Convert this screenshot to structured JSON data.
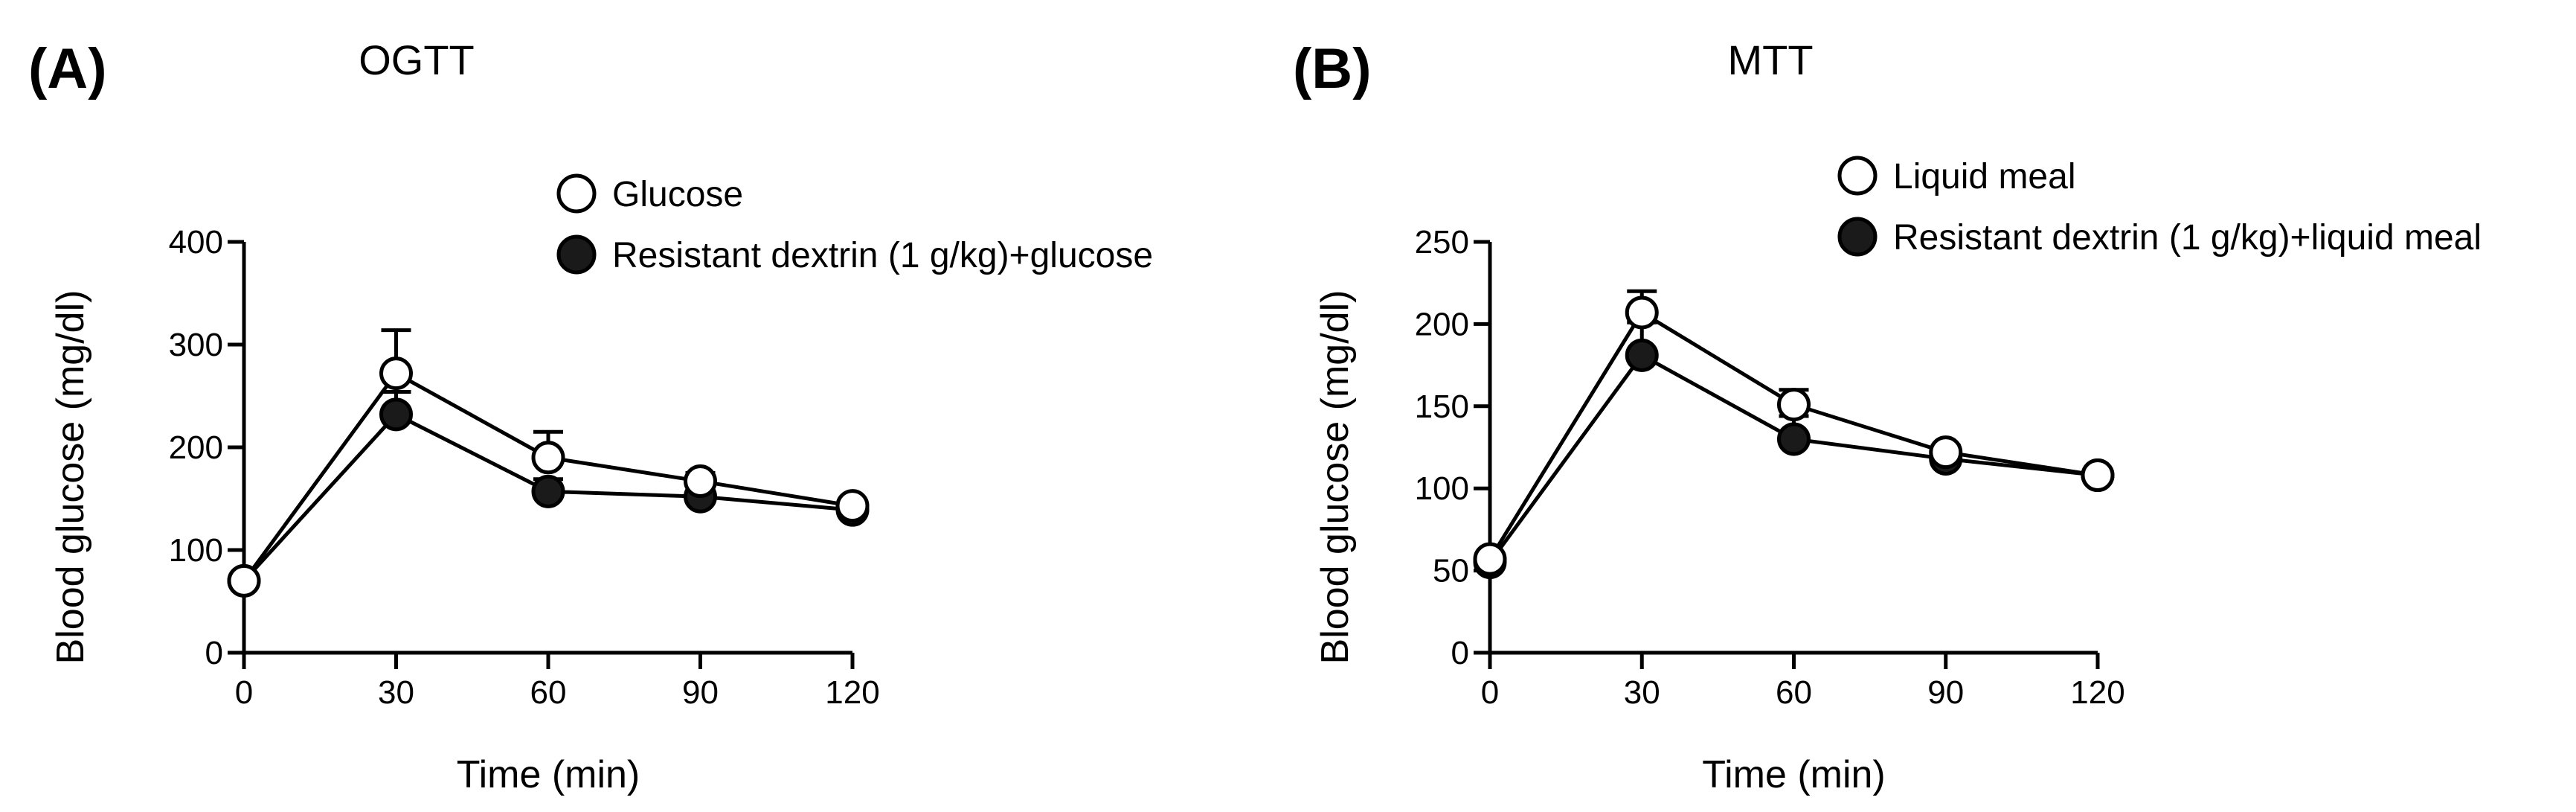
{
  "chart_data": [
    {
      "panel": "(A)",
      "title": "OGTT",
      "type": "line",
      "xlabel": "Time (min)",
      "ylabel": "Blood glucose (mg/dl)",
      "xlim": [
        0,
        120
      ],
      "ylim": [
        0,
        400
      ],
      "xticks": [
        0,
        30,
        60,
        90,
        120
      ],
      "yticks": [
        0,
        100,
        200,
        300,
        400
      ],
      "grid": false,
      "legend_position": "top-right",
      "series": [
        {
          "name": "Glucose",
          "marker": "open-circle",
          "color": "#ffffff",
          "x": [
            0,
            30,
            60,
            90,
            120
          ],
          "y": [
            70,
            272,
            190,
            167,
            143
          ],
          "err": [
            5,
            42,
            25,
            8,
            5
          ]
        },
        {
          "name": "Resistant dextrin (1 g/kg)+glucose",
          "marker": "filled-circle",
          "color": "#1a1a1a",
          "x": [
            0,
            30,
            60,
            90,
            120
          ],
          "y": [
            70,
            232,
            157,
            152,
            139
          ],
          "err": [
            5,
            22,
            12,
            6,
            5
          ]
        }
      ]
    },
    {
      "panel": "(B)",
      "title": "MTT",
      "type": "line",
      "xlabel": "Time (min)",
      "ylabel": "Blood glucose (mg/dl)",
      "xlim": [
        0,
        120
      ],
      "ylim": [
        0,
        250
      ],
      "xticks": [
        0,
        30,
        60,
        90,
        120
      ],
      "yticks": [
        0,
        50,
        100,
        150,
        200,
        250
      ],
      "grid": false,
      "legend_position": "top-right",
      "series": [
        {
          "name": "Liquid meal",
          "marker": "open-circle",
          "color": "#ffffff",
          "x": [
            0,
            30,
            60,
            90,
            120
          ],
          "y": [
            57,
            207,
            151,
            122,
            108
          ],
          "err": [
            3,
            13,
            9,
            4,
            3
          ]
        },
        {
          "name": "Resistant dextrin (1 g/kg)+liquid meal",
          "marker": "filled-circle",
          "color": "#1a1a1a",
          "x": [
            0,
            30,
            60,
            90,
            120
          ],
          "y": [
            55,
            181,
            130,
            118,
            108
          ],
          "err": [
            3,
            20,
            14,
            4,
            3
          ]
        }
      ]
    }
  ]
}
